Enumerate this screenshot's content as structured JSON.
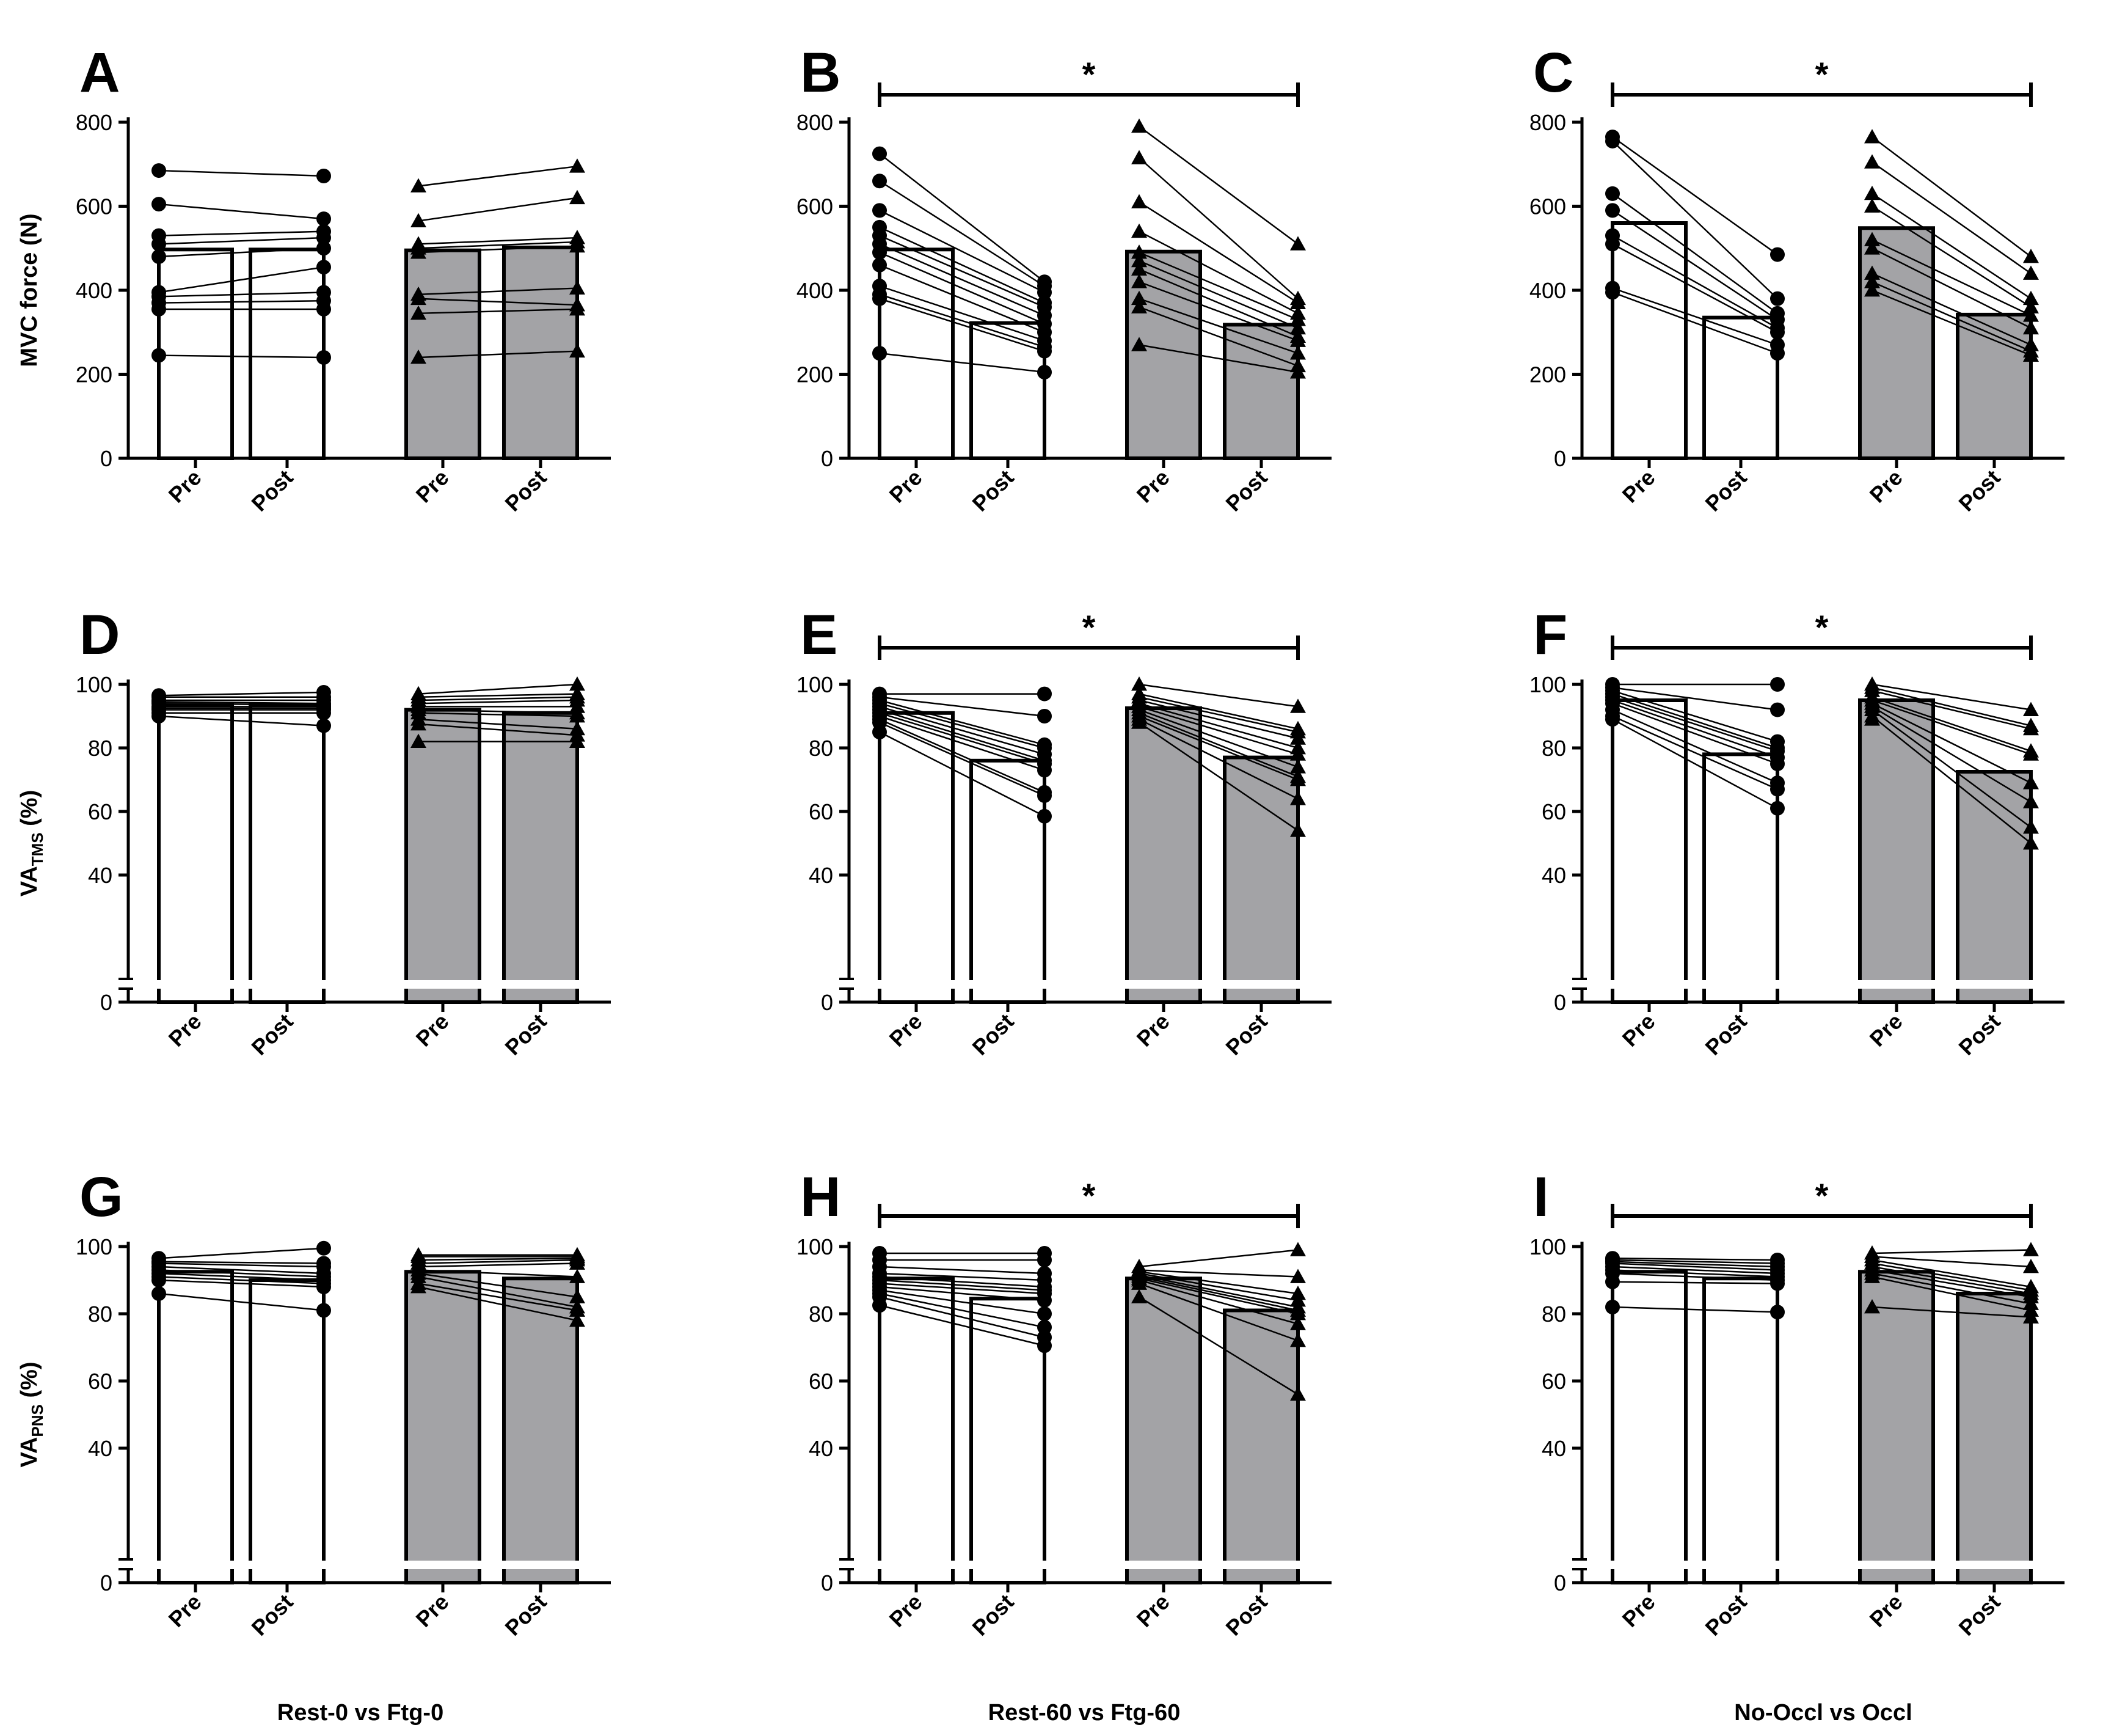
{
  "figure": {
    "column_labels": [
      "Rest-0 vs Ftg-0",
      "Rest-60 vs Ftg-60",
      "No-Occl vs Occl"
    ]
  },
  "colors": {
    "open_bar": "#ffffff",
    "filled_bar": "#a3a3a6",
    "ink": "#000000",
    "axis_break": "#ffffff"
  },
  "chart_data": [
    {
      "panel": "A",
      "type": "bar",
      "column": 0,
      "row": 0,
      "ylabel": "MVC force (N)",
      "ylim": [
        0,
        800
      ],
      "yticks": [
        0,
        200,
        400,
        600,
        800
      ],
      "axis_break": false,
      "significance": null,
      "categories": [
        "Pre",
        "Post",
        "Pre",
        "Post"
      ],
      "bar_fill": [
        "open",
        "open",
        "filled",
        "filled"
      ],
      "values": [
        497,
        497,
        495,
        502
      ],
      "series": [
        {
          "name": "",
          "marker": "circle",
          "pre": [
            685,
            605,
            530,
            510,
            480,
            395,
            385,
            370,
            355,
            245
          ],
          "post": [
            672,
            570,
            540,
            525,
            500,
            455,
            395,
            375,
            355,
            240
          ]
        },
        {
          "name": "",
          "marker": "triangle",
          "pre": [
            648,
            565,
            510,
            500,
            490,
            390,
            380,
            345,
            240
          ],
          "post": [
            695,
            620,
            525,
            515,
            505,
            405,
            365,
            355,
            255
          ]
        }
      ]
    },
    {
      "panel": "B",
      "type": "bar",
      "column": 1,
      "row": 0,
      "ylabel": "",
      "ylim": [
        0,
        800
      ],
      "yticks": [
        0,
        200,
        400,
        600,
        800
      ],
      "axis_break": false,
      "significance": "*",
      "categories": [
        "Pre",
        "Post",
        "Pre",
        "Post"
      ],
      "bar_fill": [
        "open",
        "open",
        "filled",
        "filled"
      ],
      "values": [
        497,
        322,
        492,
        318
      ],
      "series": [
        {
          "name": "",
          "marker": "circle",
          "pre": [
            725,
            660,
            590,
            550,
            530,
            510,
            490,
            460,
            410,
            390,
            380,
            250
          ],
          "post": [
            420,
            410,
            395,
            370,
            360,
            340,
            320,
            300,
            280,
            265,
            255,
            205
          ]
        },
        {
          "name": "",
          "marker": "triangle",
          "pre": [
            790,
            715,
            610,
            540,
            490,
            470,
            450,
            420,
            380,
            360,
            270
          ],
          "post": [
            510,
            380,
            370,
            345,
            330,
            310,
            290,
            280,
            250,
            220,
            205
          ]
        }
      ]
    },
    {
      "panel": "C",
      "type": "bar",
      "column": 2,
      "row": 0,
      "ylabel": "",
      "ylim": [
        0,
        800
      ],
      "yticks": [
        0,
        200,
        400,
        600,
        800
      ],
      "axis_break": false,
      "significance": "*",
      "categories": [
        "Pre",
        "Post",
        "Pre",
        "Post"
      ],
      "bar_fill": [
        "open",
        "open",
        "filled",
        "filled"
      ],
      "values": [
        560,
        335,
        548,
        342
      ],
      "series": [
        {
          "name": "",
          "marker": "circle",
          "pre": [
            765,
            755,
            630,
            590,
            530,
            510,
            405,
            395
          ],
          "post": [
            485,
            380,
            345,
            330,
            310,
            300,
            270,
            250
          ]
        },
        {
          "name": "",
          "marker": "triangle",
          "pre": [
            765,
            705,
            630,
            600,
            520,
            500,
            440,
            420,
            400
          ],
          "post": [
            480,
            440,
            380,
            360,
            340,
            310,
            270,
            255,
            245
          ]
        }
      ]
    },
    {
      "panel": "D",
      "type": "bar",
      "column": 0,
      "row": 1,
      "ylabel": "VA",
      "ylabel_sub": "TMS",
      "ylabel_suffix": " (%)",
      "ylim": [
        0,
        100
      ],
      "yticks": [
        0,
        40,
        60,
        80,
        100
      ],
      "ytick_labels": [
        "0",
        "40",
        "60",
        "80",
        "100"
      ],
      "axis_break": true,
      "significance": null,
      "categories": [
        "Pre",
        "Post",
        "Pre",
        "Post"
      ],
      "bar_fill": [
        "open",
        "open",
        "filled",
        "filled"
      ],
      "values": [
        93.5,
        93.5,
        92,
        91
      ],
      "series": [
        {
          "name": "",
          "marker": "circle",
          "pre": [
            96.5,
            96,
            95,
            94.5,
            94,
            93,
            92.5,
            92,
            91,
            90
          ],
          "post": [
            97.5,
            96,
            95,
            94,
            93.5,
            93,
            92.5,
            92,
            91,
            87
          ]
        },
        {
          "name": "",
          "marker": "triangle",
          "pre": [
            97,
            96,
            95,
            94,
            93,
            92,
            91,
            89,
            87.5,
            82
          ],
          "post": [
            100,
            97,
            96,
            95,
            93,
            91,
            90,
            86,
            84,
            82
          ]
        }
      ]
    },
    {
      "panel": "E",
      "type": "bar",
      "column": 1,
      "row": 1,
      "ylabel": "",
      "ylim": [
        0,
        100
      ],
      "yticks": [
        0,
        40,
        60,
        80,
        100
      ],
      "ytick_labels": [
        "0",
        "40",
        "60",
        "80",
        "100"
      ],
      "axis_break": true,
      "significance": "*",
      "categories": [
        "Pre",
        "Post",
        "Pre",
        "Post"
      ],
      "bar_fill": [
        "open",
        "open",
        "filled",
        "filled"
      ],
      "values": [
        91,
        76,
        92.5,
        77
      ],
      "series": [
        {
          "name": "",
          "marker": "circle",
          "pre": [
            97,
            96,
            95,
            94,
            93,
            92,
            91,
            90,
            89,
            88,
            85
          ],
          "post": [
            97,
            90,
            81,
            80,
            78,
            76,
            75,
            73,
            66,
            65,
            58.5
          ]
        },
        {
          "name": "",
          "marker": "triangle",
          "pre": [
            100,
            97,
            96,
            95,
            94,
            93,
            92,
            91,
            90,
            89,
            88
          ],
          "post": [
            93,
            86,
            85,
            83,
            80,
            78,
            74,
            71,
            70,
            64,
            54
          ]
        }
      ]
    },
    {
      "panel": "F",
      "type": "bar",
      "column": 2,
      "row": 1,
      "ylabel": "",
      "ylim": [
        0,
        100
      ],
      "yticks": [
        0,
        40,
        60,
        80,
        100
      ],
      "ytick_labels": [
        "0",
        "40",
        "60",
        "80",
        "100"
      ],
      "axis_break": true,
      "significance": "*",
      "categories": [
        "Pre",
        "Post",
        "Pre",
        "Post"
      ],
      "bar_fill": [
        "open",
        "open",
        "filled",
        "filled"
      ],
      "values": [
        95,
        78,
        95,
        72.5
      ],
      "series": [
        {
          "name": "",
          "marker": "circle",
          "pre": [
            100,
            99,
            98,
            97,
            96,
            95,
            94,
            92,
            90,
            89
          ],
          "post": [
            100,
            92,
            82,
            80,
            79,
            77,
            75,
            69,
            67,
            61
          ]
        },
        {
          "name": "",
          "marker": "triangle",
          "pre": [
            100,
            99,
            98,
            96,
            95,
            94,
            93,
            92,
            90,
            89
          ],
          "post": [
            92,
            87,
            86,
            79,
            78,
            69,
            63,
            55,
            50
          ]
        }
      ]
    },
    {
      "panel": "G",
      "type": "bar",
      "column": 0,
      "row": 2,
      "ylabel": "VA",
      "ylabel_sub": "PNS",
      "ylabel_suffix": " (%)",
      "ylim": [
        0,
        100
      ],
      "yticks": [
        0,
        40,
        60,
        80,
        100
      ],
      "ytick_labels": [
        "0",
        "40",
        "60",
        "80",
        "100"
      ],
      "axis_break": true,
      "significance": null,
      "categories": [
        "Pre",
        "Post",
        "Pre",
        "Post"
      ],
      "bar_fill": [
        "open",
        "open",
        "filled",
        "filled"
      ],
      "values": [
        92.5,
        90,
        92.5,
        90.5
      ],
      "series": [
        {
          "name": "",
          "marker": "circle",
          "pre": [
            96.5,
            95.5,
            95,
            94,
            93,
            92,
            91,
            90,
            86
          ],
          "post": [
            99.5,
            95,
            94,
            92,
            91,
            90,
            89,
            88,
            81
          ]
        },
        {
          "name": "",
          "marker": "triangle",
          "pre": [
            97.5,
            97,
            96,
            95,
            94,
            93,
            92,
            91,
            89,
            88
          ],
          "post": [
            97.5,
            97,
            96.5,
            96,
            95,
            91,
            85,
            82,
            81,
            78
          ]
        }
      ]
    },
    {
      "panel": "H",
      "type": "bar",
      "column": 1,
      "row": 2,
      "ylabel": "",
      "ylim": [
        0,
        100
      ],
      "yticks": [
        0,
        40,
        60,
        80,
        100
      ],
      "ytick_labels": [
        "0",
        "40",
        "60",
        "80",
        "100"
      ],
      "axis_break": true,
      "significance": "*",
      "categories": [
        "Pre",
        "Post",
        "Pre",
        "Post"
      ],
      "bar_fill": [
        "open",
        "open",
        "filled",
        "filled"
      ],
      "values": [
        90.5,
        84.5,
        90.5,
        81
      ],
      "series": [
        {
          "name": "",
          "marker": "circle",
          "pre": [
            98,
            96,
            94,
            92,
            91,
            90,
            89,
            88,
            87,
            86,
            85,
            82.5
          ],
          "post": [
            98,
            96,
            92,
            90,
            88,
            87,
            86,
            84,
            80,
            76,
            73,
            70.5
          ]
        },
        {
          "name": "",
          "marker": "triangle",
          "pre": [
            94,
            93,
            92.5,
            92,
            91.5,
            91,
            90.5,
            90,
            89,
            85
          ],
          "post": [
            99,
            91,
            86,
            84,
            82,
            81,
            80,
            77,
            72,
            56
          ]
        }
      ]
    },
    {
      "panel": "I",
      "type": "bar",
      "column": 2,
      "row": 2,
      "ylabel": "",
      "ylim": [
        0,
        100
      ],
      "yticks": [
        0,
        40,
        60,
        80,
        100
      ],
      "ytick_labels": [
        "0",
        "40",
        "60",
        "80",
        "100"
      ],
      "axis_break": true,
      "significance": "*",
      "categories": [
        "Pre",
        "Post",
        "Pre",
        "Post"
      ],
      "bar_fill": [
        "open",
        "open",
        "filled",
        "filled"
      ],
      "values": [
        92.5,
        90.5,
        92.5,
        86
      ],
      "series": [
        {
          "name": "",
          "marker": "circle",
          "pre": [
            96.5,
            96,
            95.5,
            95,
            94,
            93,
            92,
            89.5,
            82
          ],
          "post": [
            96,
            95,
            94,
            93,
            92,
            91,
            90,
            89,
            80.5
          ]
        },
        {
          "name": "",
          "marker": "triangle",
          "pre": [
            98,
            97,
            96,
            95,
            94,
            93,
            92,
            91,
            82
          ],
          "post": [
            99,
            94,
            88,
            87,
            86,
            85,
            83,
            81,
            79
          ]
        }
      ]
    }
  ]
}
